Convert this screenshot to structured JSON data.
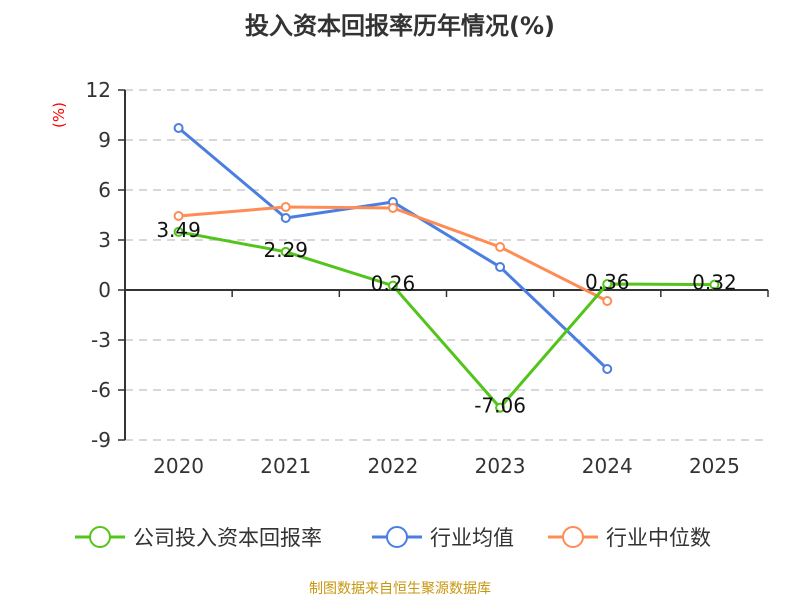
{
  "chart_data": {
    "type": "line",
    "title": "投入资本回报率历年情况(%)",
    "ylabel": "(%)",
    "categories": [
      "2020",
      "2021",
      "2022",
      "2023",
      "2024",
      "2025"
    ],
    "ylim": [
      -9,
      12
    ],
    "yticks": [
      12,
      9,
      6,
      3,
      0,
      -3,
      -6,
      -9
    ],
    "grid": true,
    "legend_position": "bottom",
    "series": [
      {
        "name": "公司投入资本回报率",
        "color": "#52c41a",
        "values": [
          3.49,
          2.29,
          0.26,
          -7.06,
          0.36,
          0.32
        ],
        "labels": [
          "3.49",
          "2.29",
          "0.26",
          "-7.06",
          "0.36",
          "0.32"
        ]
      },
      {
        "name": "行业均值",
        "color": "#4a7ee0",
        "values": [
          9.72,
          4.32,
          5.28,
          1.38,
          -4.74,
          null
        ]
      },
      {
        "name": "行业中位数",
        "color": "#ff8c55",
        "values": [
          4.44,
          4.98,
          4.92,
          2.58,
          -0.66,
          null
        ]
      }
    ]
  },
  "source": "制图数据来自恒生聚源数据库"
}
